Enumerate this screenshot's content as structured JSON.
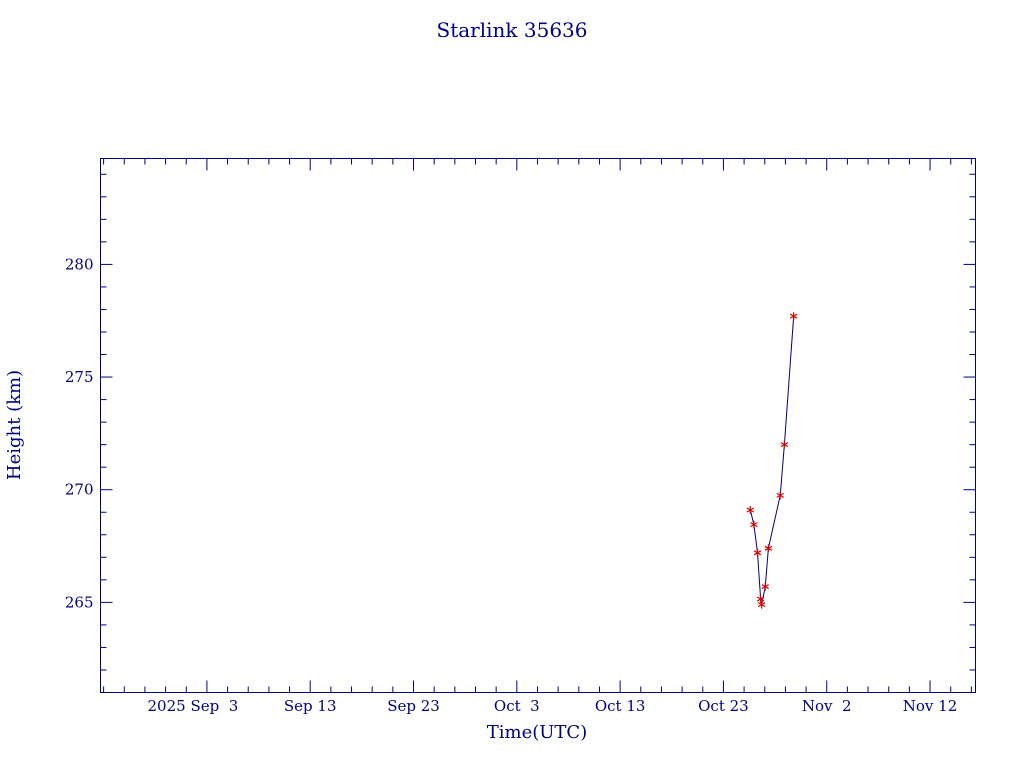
{
  "chart_data": {
    "type": "line",
    "title": "Starlink 35636",
    "xlabel": "Time(UTC)",
    "ylabel": "Height (km)",
    "x_unit": "days since 2025-09-01 00:00 UTC",
    "xlim": [
      -8.3,
      76.4
    ],
    "ylim": [
      261.0,
      284.7
    ],
    "grid": false,
    "axis_color": "#000080",
    "line_color": "#000080",
    "marker": {
      "shape": "asterisk",
      "color": "#dd0000"
    },
    "x_ticks": [
      {
        "value": 2,
        "label": "2025 Sep  3"
      },
      {
        "value": 12,
        "label": "Sep 13"
      },
      {
        "value": 22,
        "label": "Sep 23"
      },
      {
        "value": 32,
        "label": "Oct  3"
      },
      {
        "value": 42,
        "label": "Oct 13"
      },
      {
        "value": 52,
        "label": "Oct 23"
      },
      {
        "value": 62,
        "label": "Nov  2"
      },
      {
        "value": 72,
        "label": "Nov 12"
      }
    ],
    "x_minor_step": 2,
    "y_ticks": [
      {
        "value": 265,
        "label": "265"
      },
      {
        "value": 270,
        "label": "270"
      },
      {
        "value": 275,
        "label": "275"
      },
      {
        "value": 280,
        "label": "280"
      }
    ],
    "y_minor_step": 1,
    "series": [
      {
        "name": "height",
        "points": [
          [
            54.6,
            269.1
          ],
          [
            54.95,
            268.45
          ],
          [
            55.3,
            267.2
          ],
          [
            55.6,
            265.15
          ],
          [
            55.7,
            264.9
          ],
          [
            56.05,
            265.7
          ],
          [
            56.35,
            267.4
          ],
          [
            57.5,
            269.75
          ],
          [
            57.9,
            272.0
          ],
          [
            58.8,
            277.7
          ]
        ]
      }
    ]
  }
}
